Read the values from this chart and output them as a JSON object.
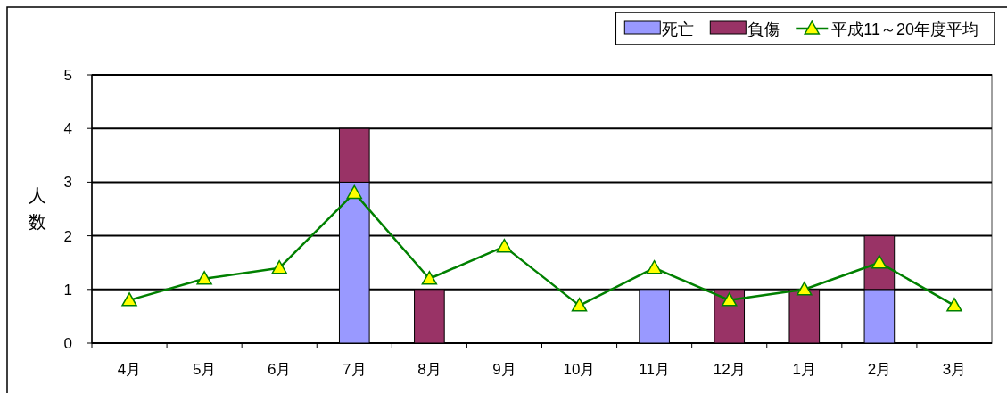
{
  "chart_data": {
    "type": "bar",
    "stacked": true,
    "ylabel": "人数",
    "categories": [
      "4月",
      "5月",
      "6月",
      "7月",
      "8月",
      "9月",
      "10月",
      "11月",
      "12月",
      "1月",
      "2月",
      "3月"
    ],
    "series": [
      {
        "name": "死亡",
        "color": "#9999ff",
        "values": [
          0,
          0,
          0,
          3,
          0,
          0,
          0,
          1,
          0,
          0,
          1,
          0
        ]
      },
      {
        "name": "負傷",
        "color": "#993366",
        "values": [
          0,
          0,
          0,
          1,
          1,
          0,
          0,
          0,
          1,
          1,
          1,
          0
        ]
      },
      {
        "name": "平成11～20年度平均",
        "type": "line",
        "color": "#008000",
        "marker": "triangle",
        "values": [
          0.8,
          1.2,
          1.4,
          2.8,
          1.2,
          1.8,
          0.7,
          1.4,
          0.8,
          1.0,
          1.5,
          0.7
        ]
      }
    ],
    "ylim": [
      0,
      5
    ],
    "yticks": [
      0,
      1,
      2,
      3,
      4,
      5
    ],
    "grid": "y",
    "legend": "top right"
  }
}
